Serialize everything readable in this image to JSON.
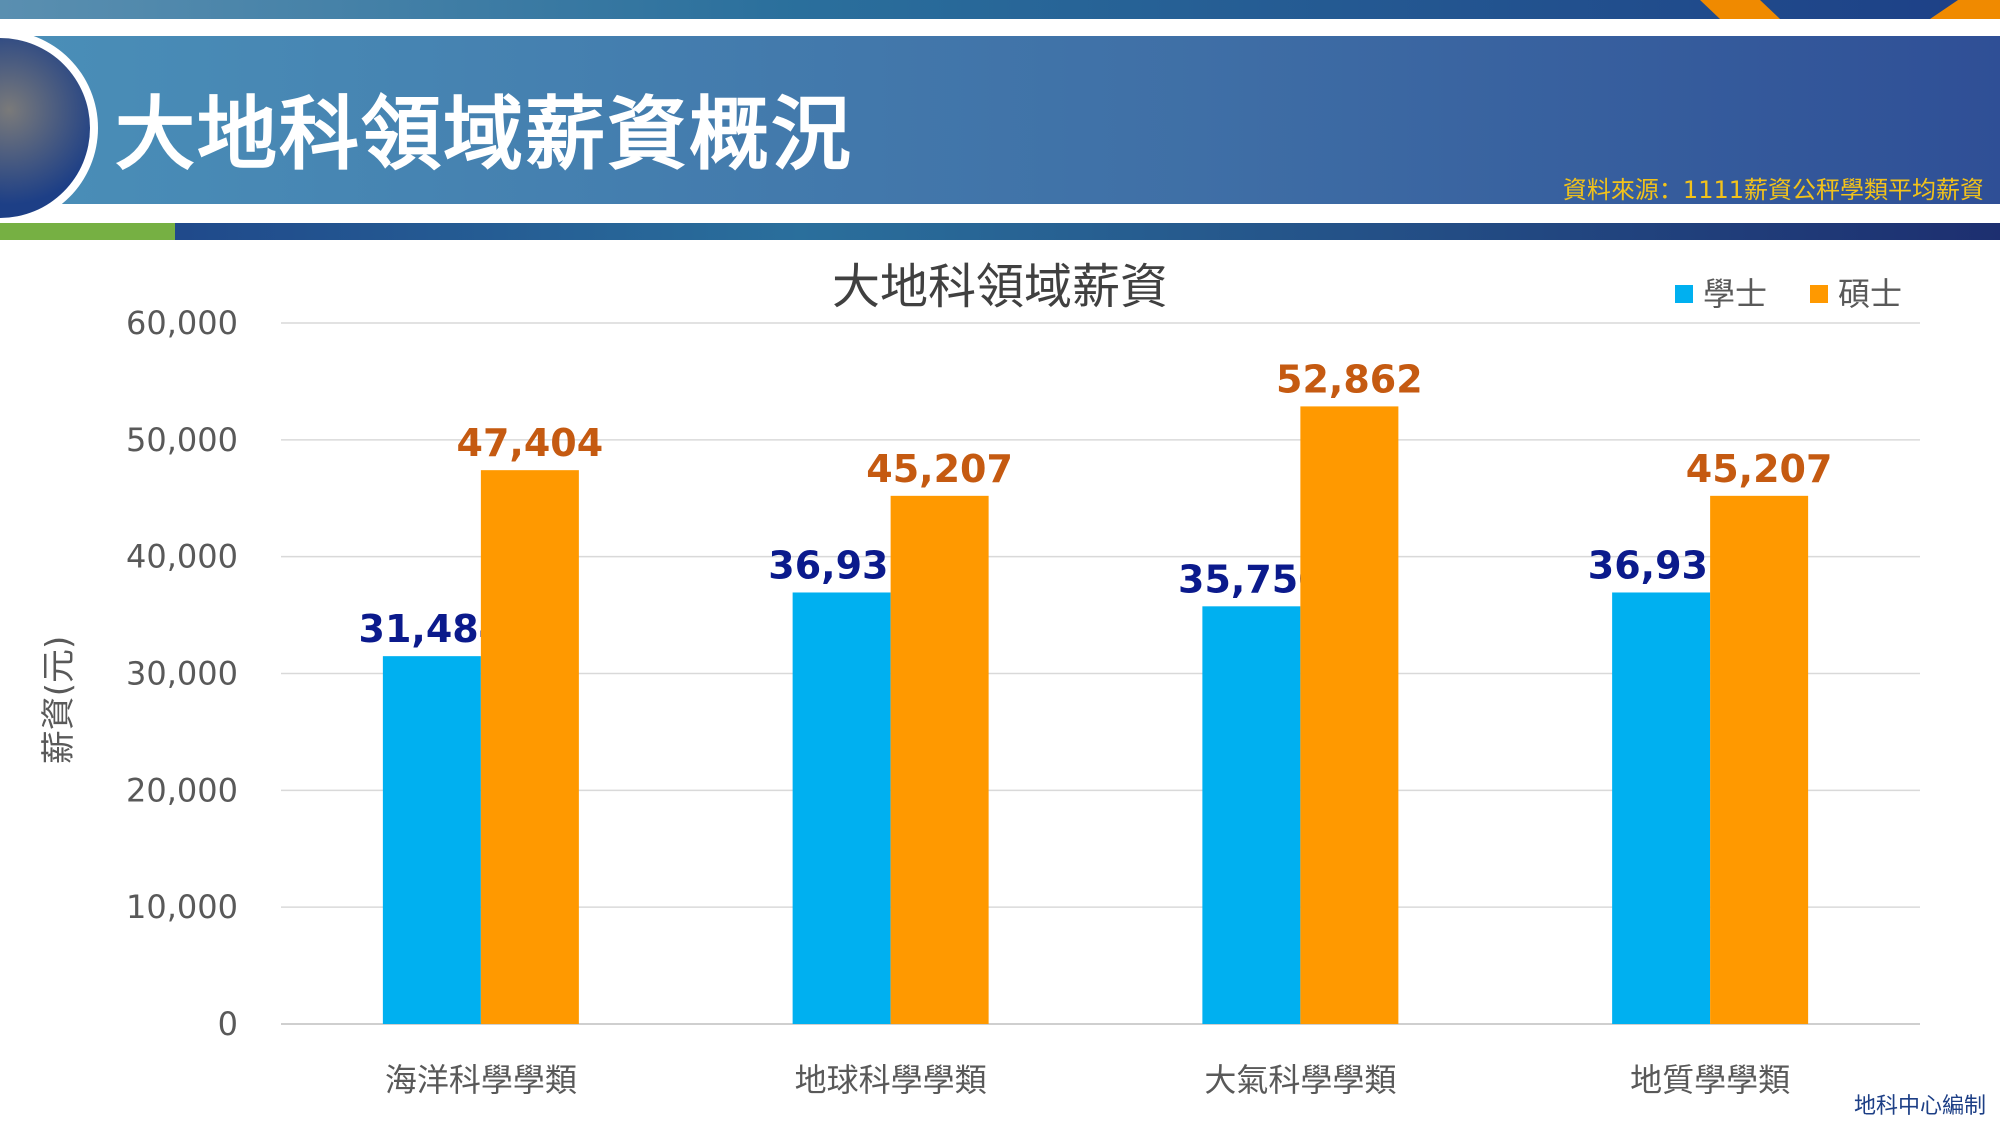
{
  "header": {
    "title": "大地科領域薪資概況",
    "source": "資料來源：1111薪資公秤學類平均薪資"
  },
  "footer": "地科中心編制",
  "colors": {
    "bachelor": "#00b0f0",
    "master": "#ff9900",
    "bachelor_label": "#0b1a8c",
    "master_label": "#c55a11"
  },
  "chart_data": {
    "type": "bar",
    "title": "大地科領域薪資",
    "xlabel": "",
    "ylabel": "薪資(元)",
    "ylim": [
      0,
      60000
    ],
    "yticks": [
      0,
      10000,
      20000,
      30000,
      40000,
      50000,
      60000
    ],
    "ytick_labels": [
      "0",
      "10,000",
      "20,000",
      "30,000",
      "40,000",
      "50,000",
      "60,000"
    ],
    "grid": true,
    "legend_position": "top-right",
    "categories": [
      "海洋科學學類",
      "地球科學學類",
      "大氣科學學類",
      "地質學學類"
    ],
    "series": [
      {
        "name": "學士",
        "values": [
          31484,
          36935,
          35750,
          36935
        ],
        "labels": [
          "31,484",
          "36,935",
          "35,750",
          "36,935"
        ]
      },
      {
        "name": "碩士",
        "values": [
          47404,
          45207,
          52862,
          45207
        ],
        "labels": [
          "47,404",
          "45,207",
          "52,862",
          "45,207"
        ]
      }
    ]
  }
}
